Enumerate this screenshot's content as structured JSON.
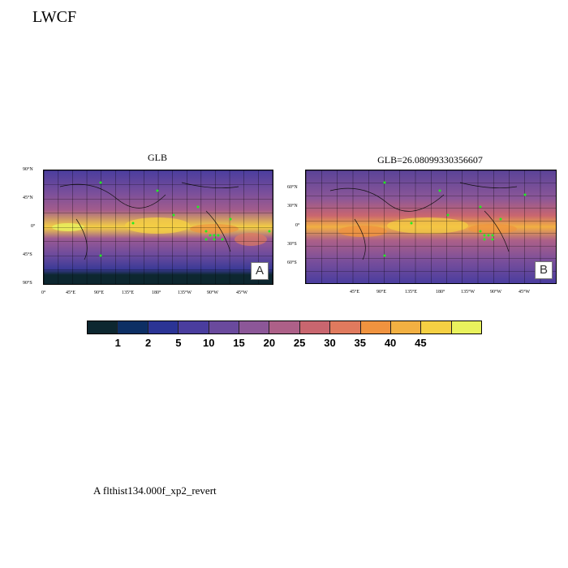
{
  "page_title": "LWCF",
  "colorbar": {
    "colors": [
      "#0d2730",
      "#0d2f64",
      "#2b3495",
      "#4a3d9e",
      "#6a4a9d",
      "#8c5798",
      "#ad6088",
      "#c9666f",
      "#e07a5e",
      "#f0933f",
      "#f2b042",
      "#f5d043",
      "#e9f25d"
    ],
    "labels": [
      "1",
      "2",
      "5",
      "10",
      "15",
      "20",
      "25",
      "30",
      "35",
      "40",
      "45"
    ]
  },
  "maps": [
    {
      "title": "GLB",
      "panel_letter": "A",
      "lat_ticks": [
        "90°N",
        "45°N",
        "0°",
        "45°S",
        "90°S"
      ],
      "lon_ticks": [
        "0°",
        "45°E",
        "90°E",
        "135°E",
        "180°",
        "135°W",
        "90°W",
        "45°W"
      ]
    },
    {
      "title": "GLB=26.08099330356607",
      "panel_letter": "B",
      "lat_ticks": [
        "60°N",
        "30°N",
        "0°",
        "30°S",
        "60°S"
      ],
      "lon_ticks": [
        "45°E",
        "90°E",
        "135°E",
        "180°",
        "135°W",
        "90°W",
        "45°W"
      ]
    }
  ],
  "footnote": "A  flthist134.000f_xp2_revert"
}
